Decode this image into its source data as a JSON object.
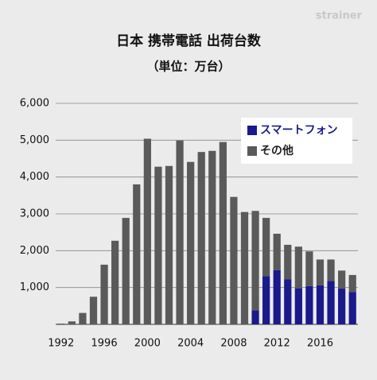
{
  "chart_data": {
    "type": "stacked_bar",
    "title": "日本 携帯電話 出荷台数",
    "subtitle": "（単位：万台）",
    "watermark": "strainer",
    "categories": [
      "1992",
      null,
      null,
      null,
      "1996",
      null,
      null,
      null,
      "2000",
      null,
      null,
      null,
      "2004",
      null,
      null,
      null,
      "2008",
      null,
      null,
      null,
      "2012",
      null,
      null,
      null,
      "2016",
      null,
      null,
      null
    ],
    "series": [
      {
        "name": "スマートフォン",
        "color": "#1a1a8c",
        "values": [
          null,
          null,
          null,
          null,
          null,
          null,
          null,
          null,
          null,
          null,
          null,
          null,
          null,
          null,
          null,
          null,
          null,
          null,
          380,
          1310,
          1470,
          1220,
          980,
          1040,
          1060,
          1180,
          970,
          880
        ]
      },
      {
        "name": "その他",
        "color": "#5a5a5a",
        "values": [
          20,
          80,
          310,
          750,
          1620,
          2270,
          2890,
          3800,
          5040,
          4280,
          4300,
          4990,
          4410,
          4680,
          4710,
          4950,
          3460,
          3050,
          2700,
          1580,
          990,
          940,
          1130,
          940,
          700,
          580,
          490,
          460
        ]
      }
    ],
    "ylim": [
      0,
      6000
    ],
    "yticks": [
      {
        "value": 1000,
        "label": "1,000"
      },
      {
        "value": 2000,
        "label": "2,000"
      },
      {
        "value": 3000,
        "label": "3,000"
      },
      {
        "value": 4000,
        "label": "4,000"
      },
      {
        "value": 5000,
        "label": "5,000"
      },
      {
        "value": 6000,
        "label": "6,000"
      }
    ],
    "grid": true,
    "legend": "upper right"
  }
}
